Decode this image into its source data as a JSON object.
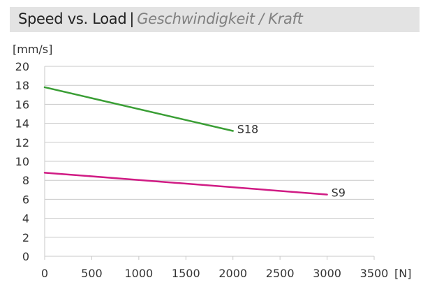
{
  "chart_data": {
    "type": "line",
    "title": "Speed vs. Load",
    "title_separator": "|",
    "subtitle": "Geschwindigkeit / Kraft",
    "xlabel": "[N]",
    "ylabel": "[mm/s]",
    "xlim": [
      0,
      3500
    ],
    "ylim": [
      0,
      20
    ],
    "xticks": [
      "0",
      "500",
      "1000",
      "1500",
      "2000",
      "2500",
      "3000",
      "3500"
    ],
    "yticks": [
      "0",
      "2",
      "4",
      "6",
      "8",
      "10",
      "12",
      "14",
      "16",
      "18",
      "20"
    ],
    "grid": true,
    "series": [
      {
        "name": "S18",
        "color": "#3a9e35",
        "x": [
          0,
          2000
        ],
        "y": [
          17.8,
          13.2
        ]
      },
      {
        "name": "S9",
        "color": "#d01b84",
        "x": [
          0,
          3000
        ],
        "y": [
          8.8,
          6.5
        ]
      }
    ]
  }
}
